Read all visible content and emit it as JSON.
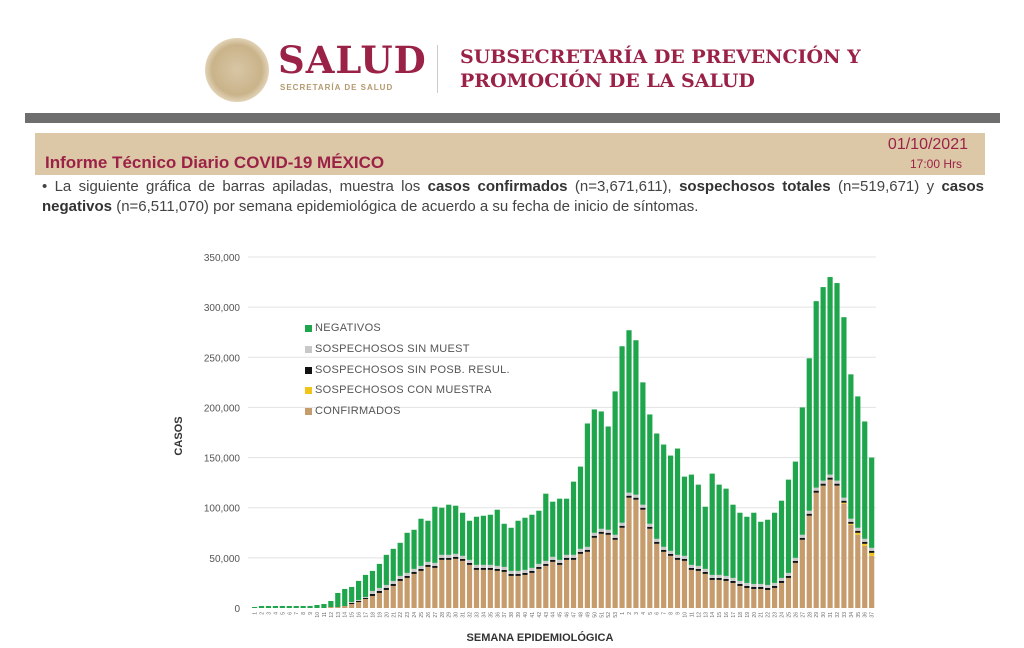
{
  "header": {
    "brand": "SALUD",
    "brand_sub": "SECRETARÍA DE SALUD",
    "subsecretaria_line1": "SUBSECRETARÍA DE PREVENCIÓN Y",
    "subsecretaria_line2": "PROMOCIÓN DE LA SALUD"
  },
  "report": {
    "title": "Informe Técnico Diario COVID-19 MÉXICO",
    "date": "01/10/2021",
    "time": "17:00 Hrs",
    "desc_1": "La siguiente gráfica de barras apiladas, muestra los ",
    "desc_b1": "casos confirmados",
    "desc_2": " (n=3,671,611), ",
    "desc_b2": "sospechosos totales",
    "desc_3": " (n=519,671) y ",
    "desc_b3": "casos negativos",
    "desc_4": " (n=6,511,070) por semana epidemiológica de acuerdo a su fecha de inicio de síntomas."
  },
  "colors": {
    "brand": "#9b2247",
    "band": "#dcc7a6",
    "negativos": "#1fa64d",
    "sin_muest": "#c8c8c8",
    "sin_posb": "#111111",
    "con_muestra": "#f0c419",
    "confirmados": "#c69c6d"
  },
  "chart_data": {
    "type": "bar",
    "stacked": true,
    "xlabel": "SEMANA EPIDEMIOLÓGICA",
    "ylabel": "CASOS",
    "ylim": [
      0,
      350000
    ],
    "yticks": [
      "0",
      "50,000",
      "100,000",
      "150,000",
      "200,000",
      "250,000",
      "300,000",
      "350,000"
    ],
    "grid": true,
    "legend_position": "top-left",
    "categories": [
      "1",
      "2",
      "3",
      "4",
      "5",
      "6",
      "7",
      "8",
      "9",
      "10",
      "11",
      "12",
      "13",
      "14",
      "15",
      "16",
      "17",
      "18",
      "19",
      "20",
      "21",
      "22",
      "23",
      "24",
      "25",
      "26",
      "27",
      "28",
      "29",
      "30",
      "31",
      "32",
      "33",
      "34",
      "35",
      "36",
      "37",
      "38",
      "39",
      "40",
      "41",
      "42",
      "43",
      "44",
      "45",
      "46",
      "47",
      "48",
      "49",
      "50",
      "51",
      "52",
      "53",
      "1",
      "2",
      "3",
      "4",
      "5",
      "6",
      "7",
      "8",
      "9",
      "10",
      "11",
      "12",
      "13",
      "14",
      "15",
      "16",
      "17",
      "18",
      "19",
      "20",
      "21",
      "22",
      "23",
      "24",
      "25",
      "26",
      "27",
      "28",
      "29",
      "30",
      "31",
      "32",
      "33",
      "34",
      "35",
      "36",
      "37"
    ],
    "series": [
      {
        "name": "CONFIRMADOS",
        "color_key": "confirmados",
        "values": [
          0,
          0,
          0,
          0,
          0,
          0,
          0,
          0,
          0,
          0,
          0,
          1000,
          1000,
          2000,
          4000,
          6000,
          9000,
          12000,
          15000,
          18000,
          22000,
          27000,
          30000,
          34000,
          37000,
          41000,
          40000,
          48000,
          48000,
          49000,
          47000,
          43000,
          38000,
          38000,
          38000,
          37000,
          36000,
          32000,
          32000,
          33000,
          35000,
          39000,
          42000,
          46000,
          43000,
          48000,
          48000,
          54000,
          56000,
          70000,
          74000,
          73000,
          68000,
          80000,
          110000,
          108000,
          98000,
          79000,
          64000,
          56000,
          52000,
          48000,
          47000,
          38000,
          37000,
          34000,
          28000,
          28000,
          27000,
          25000,
          22000,
          20000,
          19000,
          19000,
          18000,
          20000,
          25000,
          30000,
          45000,
          68000,
          92000,
          115000,
          122000,
          128000,
          122000,
          104000,
          83000,
          73000,
          62000,
          52000
        ]
      },
      {
        "name": "SOSPECHOSOS CON MUESTRA",
        "color_key": "con_muestra",
        "values": [
          0,
          0,
          0,
          0,
          0,
          0,
          0,
          0,
          0,
          0,
          0,
          0,
          0,
          0,
          0,
          0,
          0,
          0,
          0,
          0,
          0,
          0,
          0,
          0,
          0,
          0,
          0,
          0,
          0,
          0,
          0,
          0,
          0,
          0,
          0,
          0,
          0,
          0,
          0,
          0,
          0,
          0,
          0,
          0,
          0,
          0,
          0,
          0,
          0,
          0,
          0,
          0,
          0,
          0,
          0,
          0,
          0,
          0,
          0,
          0,
          0,
          0,
          0,
          0,
          0,
          0,
          0,
          0,
          0,
          0,
          0,
          0,
          0,
          0,
          0,
          0,
          0,
          0,
          0,
          0,
          0,
          0,
          0,
          0,
          0,
          1000,
          1000,
          2000,
          2000,
          3000
        ]
      },
      {
        "name": "SOSPECHOSOS SIN POSB. RESUL.",
        "color_key": "sin_posb",
        "values": [
          0,
          0,
          0,
          0,
          0,
          0,
          0,
          0,
          0,
          0,
          0,
          0,
          0,
          0,
          1000,
          1000,
          1000,
          2000,
          2000,
          2000,
          2000,
          2000,
          2000,
          2000,
          2000,
          2000,
          2000,
          2000,
          2000,
          2000,
          2000,
          2000,
          2000,
          2000,
          2000,
          2000,
          2000,
          2000,
          2000,
          2000,
          2000,
          2000,
          2000,
          2000,
          2000,
          2000,
          2000,
          2000,
          2000,
          2000,
          2000,
          2000,
          2000,
          2000,
          2000,
          2000,
          2000,
          2000,
          2000,
          2000,
          2000,
          2000,
          2000,
          2000,
          2000,
          2000,
          2000,
          2000,
          2000,
          2000,
          2000,
          2000,
          2000,
          2000,
          2000,
          2000,
          2000,
          2000,
          2000,
          2000,
          2000,
          2000,
          2000,
          2000,
          2000,
          2000,
          2000,
          2000,
          2000,
          2000
        ]
      },
      {
        "name": "SOSPECHOSOS SIN MUEST",
        "color_key": "sin_muest",
        "values": [
          0,
          0,
          0,
          0,
          0,
          0,
          0,
          0,
          0,
          0,
          0,
          0,
          0,
          0,
          1000,
          1000,
          1000,
          3000,
          3000,
          3000,
          3000,
          3000,
          3000,
          3000,
          3000,
          3000,
          3000,
          3000,
          3000,
          3000,
          3000,
          3000,
          3000,
          3000,
          3000,
          3000,
          3000,
          3000,
          3000,
          3000,
          3000,
          3000,
          3000,
          3000,
          3000,
          3000,
          3000,
          3000,
          3000,
          3000,
          3000,
          3000,
          3000,
          3000,
          3000,
          3000,
          3000,
          3000,
          3000,
          3000,
          3000,
          3000,
          3000,
          3000,
          3000,
          3000,
          3000,
          3000,
          3000,
          3000,
          3000,
          3000,
          3000,
          3000,
          3000,
          3000,
          3000,
          3000,
          3000,
          3000,
          3000,
          3000,
          3000,
          3000,
          3000,
          3000,
          3000,
          3000,
          3000,
          3000
        ]
      },
      {
        "name": "NEGATIVOS",
        "color_key": "negativos",
        "values": [
          1000,
          2000,
          2000,
          2000,
          2000,
          2000,
          2000,
          2000,
          2000,
          3000,
          4000,
          6000,
          14000,
          17000,
          15000,
          19000,
          22000,
          20000,
          24000,
          30000,
          32000,
          33000,
          40000,
          39000,
          47000,
          41000,
          56000,
          47000,
          50000,
          48000,
          43000,
          39000,
          48000,
          49000,
          50000,
          56000,
          43000,
          43000,
          50000,
          52000,
          53000,
          53000,
          67000,
          55000,
          61000,
          56000,
          73000,
          82000,
          123000,
          123000,
          117000,
          103000,
          143000,
          176000,
          162000,
          154000,
          122000,
          109000,
          105000,
          102000,
          95000,
          106000,
          79000,
          90000,
          81000,
          62000,
          101000,
          90000,
          87000,
          73000,
          68000,
          66000,
          71000,
          62000,
          65000,
          70000,
          77000,
          93000,
          96000,
          127000,
          152000,
          186000,
          193000,
          197000,
          197000,
          180000,
          144000,
          131000,
          117000,
          90000
        ]
      }
    ],
    "legend_order": [
      "NEGATIVOS",
      "SOSPECHOSOS SIN MUEST",
      "SOSPECHOSOS SIN POSB. RESUL.",
      "SOSPECHOSOS CON MUESTRA",
      "CONFIRMADOS"
    ]
  }
}
